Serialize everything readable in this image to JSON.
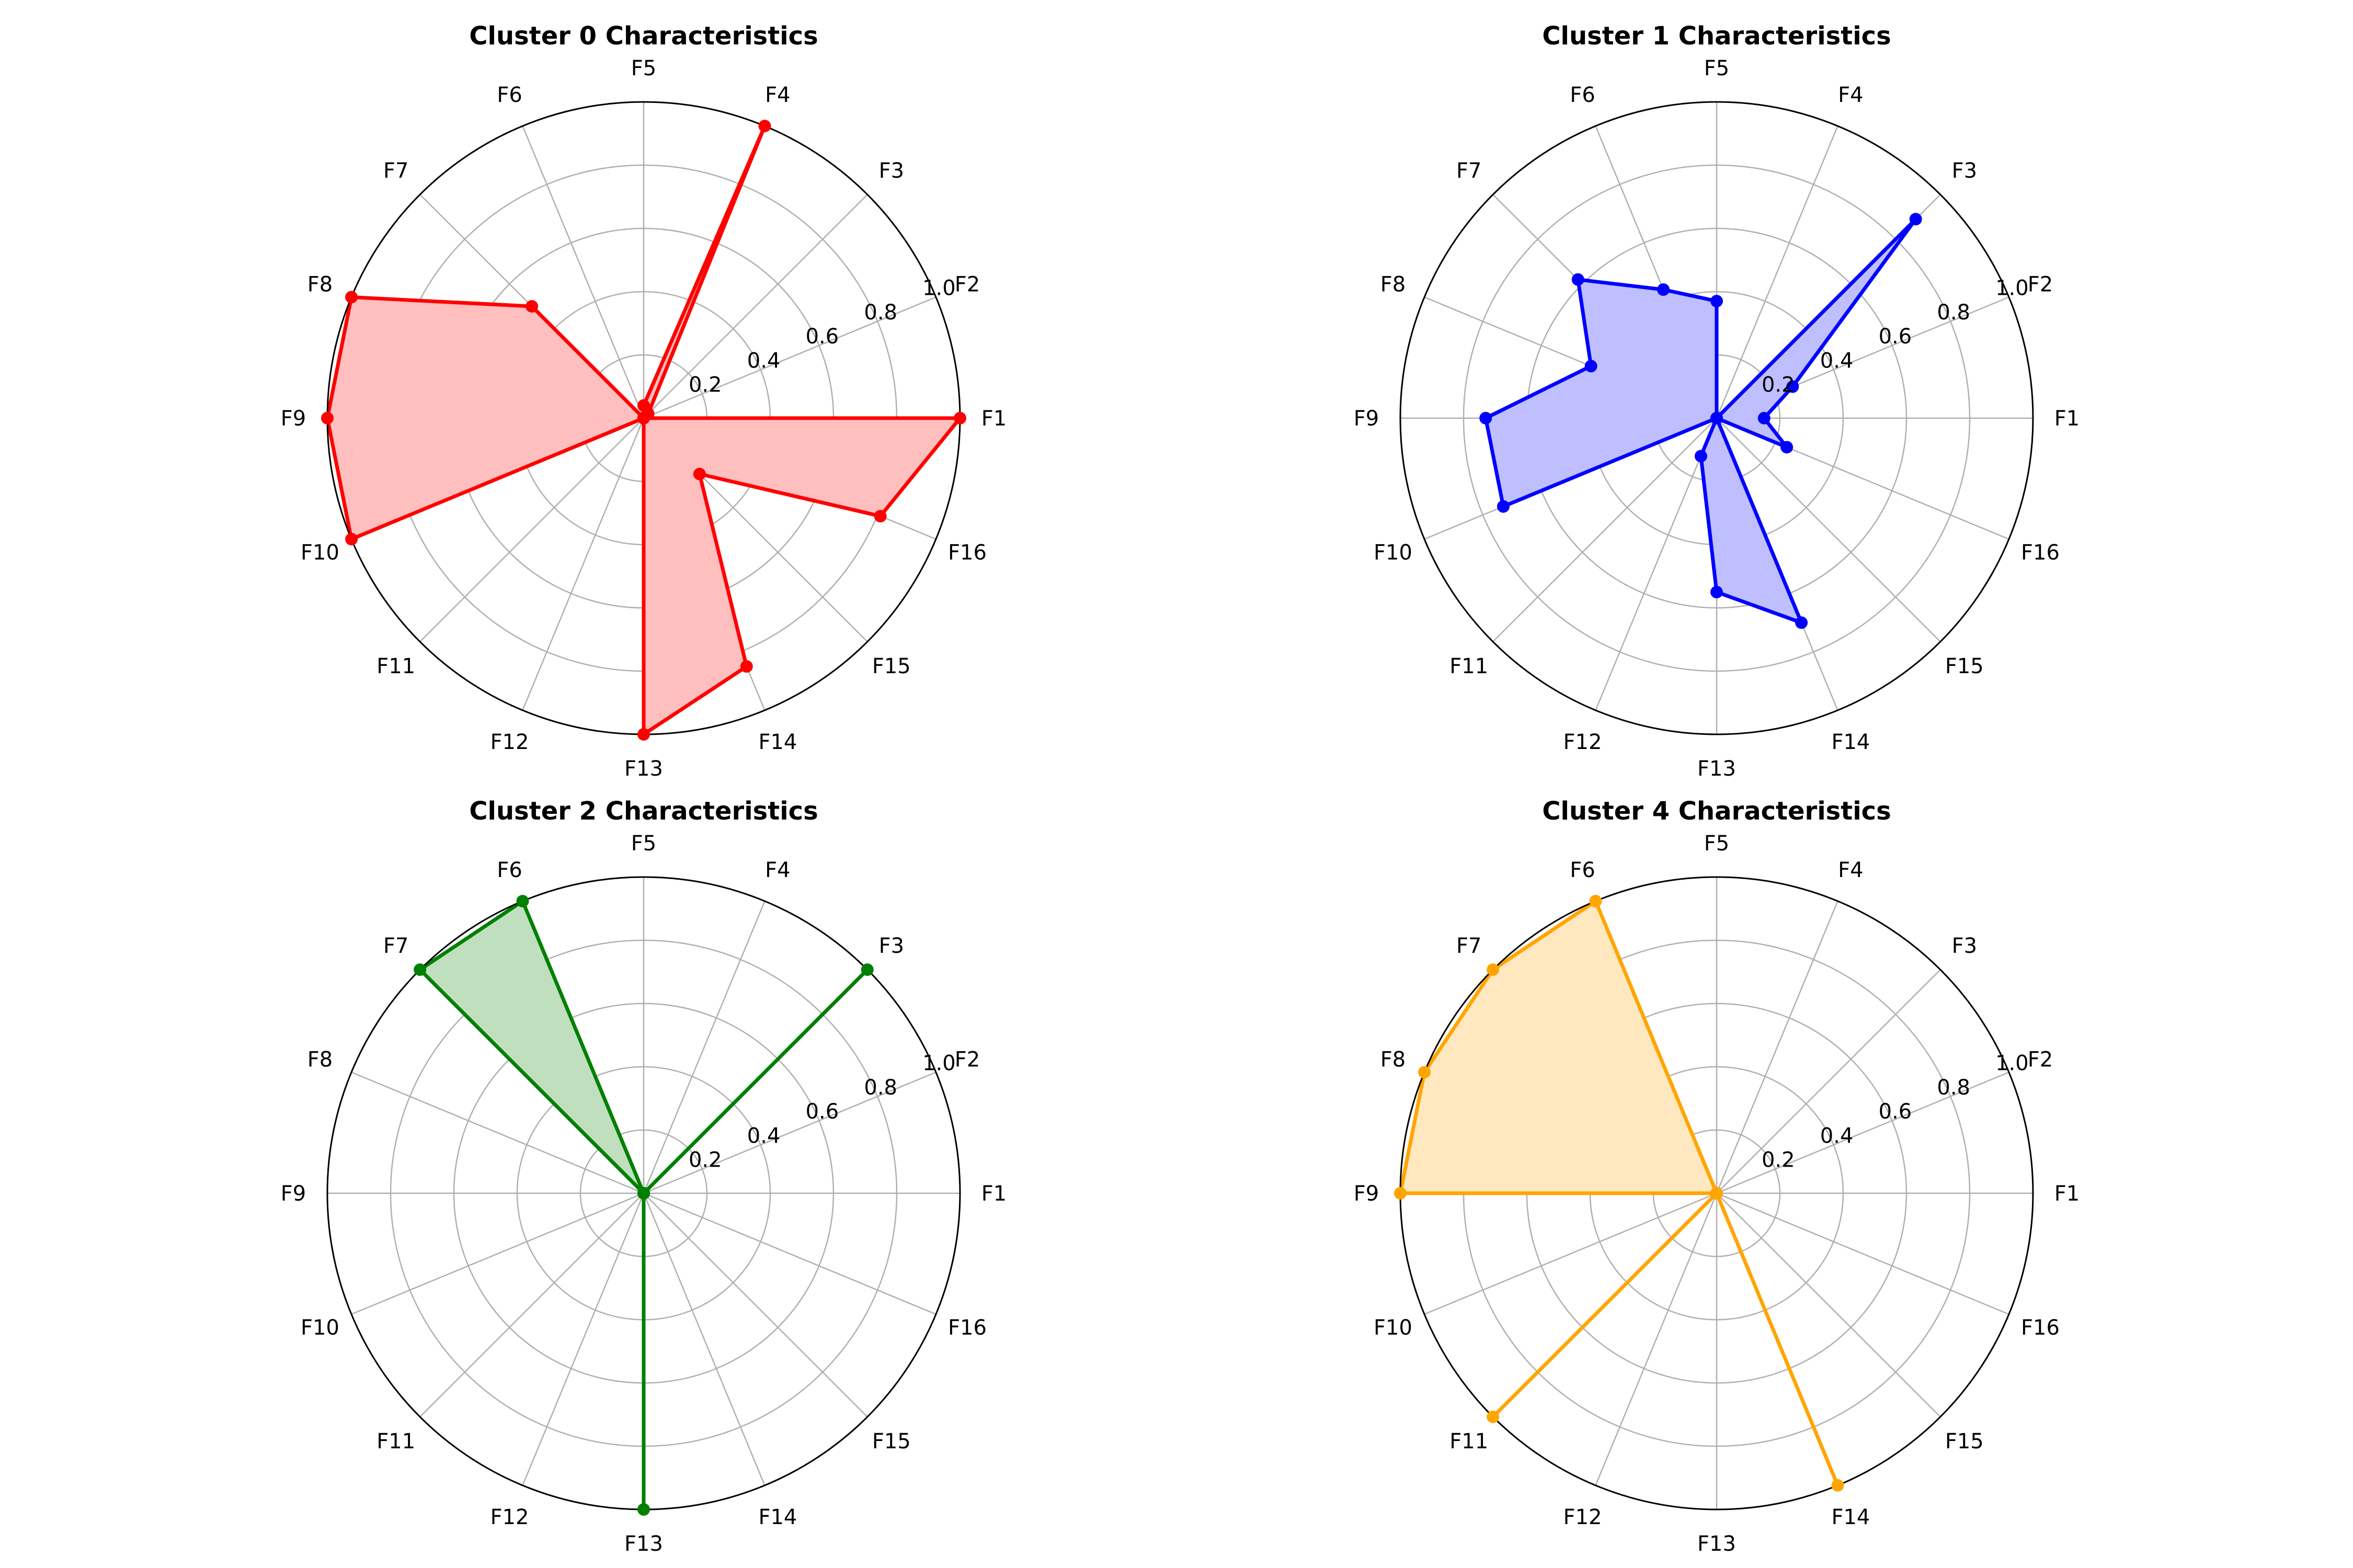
{
  "figure": {
    "background": "#ffffff"
  },
  "chart_data": [
    {
      "type": "radar",
      "title": "Cluster 0 Characteristics",
      "color": "#ff0000",
      "fill": "#ffbfbf",
      "categories": [
        "F1",
        "F2",
        "F3",
        "F4",
        "F5",
        "F6",
        "F7",
        "F8",
        "F9",
        "F10",
        "F11",
        "F12",
        "F13",
        "F14",
        "F15",
        "F16"
      ],
      "values": [
        1.0,
        0.0,
        0.02,
        1.0,
        0.04,
        0.0,
        0.5,
        1.0,
        1.0,
        1.0,
        0.0,
        0.0,
        1.0,
        0.85,
        0.25,
        0.81
      ],
      "radial_ticks": [
        "0.2",
        "0.4",
        "0.6",
        "0.8",
        "1.0"
      ],
      "ylim": [
        0,
        1.0
      ],
      "grid": true
    },
    {
      "type": "radar",
      "title": "Cluster 1 Characteristics",
      "color": "#0000ff",
      "fill": "#bfbfff",
      "categories": [
        "F1",
        "F2",
        "F3",
        "F4",
        "F5",
        "F6",
        "F7",
        "F8",
        "F9",
        "F10",
        "F11",
        "F12",
        "F13",
        "F14",
        "F15",
        "F16"
      ],
      "values": [
        0.15,
        0.26,
        0.89,
        0.0,
        0.37,
        0.44,
        0.62,
        0.43,
        0.73,
        0.73,
        0.0,
        0.13,
        0.55,
        0.7,
        0.0,
        0.24
      ],
      "radial_ticks": [
        "0.2",
        "0.4",
        "0.6",
        "0.8",
        "1.0"
      ],
      "ylim": [
        0,
        1.0
      ],
      "grid": true
    },
    {
      "type": "radar",
      "title": "Cluster 2 Characteristics",
      "color": "#008000",
      "fill": "#bfdfbf",
      "categories": [
        "F1",
        "F2",
        "F3",
        "F4",
        "F5",
        "F6",
        "F7",
        "F8",
        "F9",
        "F10",
        "F11",
        "F12",
        "F13",
        "F14",
        "F15",
        "F16"
      ],
      "values": [
        0,
        0,
        1.0,
        0,
        0,
        1.0,
        1.0,
        0,
        0,
        0,
        0,
        0,
        1.0,
        0,
        0,
        0
      ],
      "radial_ticks": [
        "0.2",
        "0.4",
        "0.6",
        "0.8",
        "1.0"
      ],
      "ylim": [
        0,
        1.0
      ],
      "grid": true
    },
    {
      "type": "radar",
      "title": "Cluster 4 Characteristics",
      "color": "#ffa500",
      "fill": "#ffe8bf",
      "categories": [
        "F1",
        "F2",
        "F3",
        "F4",
        "F5",
        "F6",
        "F7",
        "F8",
        "F9",
        "F10",
        "F11",
        "F12",
        "F13",
        "F14",
        "F15",
        "F16"
      ],
      "values": [
        0,
        0,
        0,
        0,
        0,
        1.0,
        1.0,
        1.0,
        1.0,
        0,
        1.0,
        0,
        0,
        1.0,
        0,
        0
      ],
      "radial_ticks": [
        "0.2",
        "0.4",
        "0.6",
        "0.8",
        "1.0"
      ],
      "ylim": [
        0,
        1.0
      ],
      "grid": true
    }
  ]
}
